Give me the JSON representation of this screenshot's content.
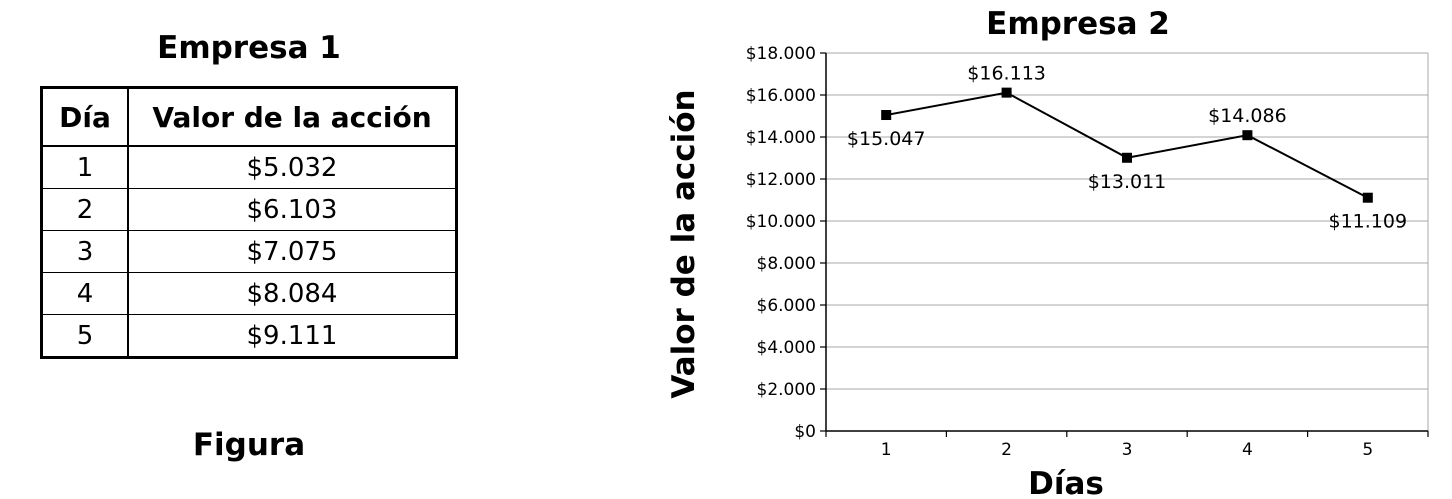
{
  "table": {
    "title": "Empresa 1",
    "headers": [
      "Día",
      "Valor de la acción"
    ],
    "rows": [
      [
        "1",
        "$5.032"
      ],
      [
        "2",
        "$6.103"
      ],
      [
        "3",
        "$7.075"
      ],
      [
        "4",
        "$8.084"
      ],
      [
        "5",
        "$9.111"
      ]
    ]
  },
  "caption": "Figura",
  "chart_data": {
    "type": "line",
    "title": "Empresa 2",
    "xlabel": "Días",
    "ylabel": "Valor de la acción",
    "categories": [
      "1",
      "2",
      "3",
      "4",
      "5"
    ],
    "series": [
      {
        "values": [
          15047,
          16113,
          13011,
          14086,
          11109
        ],
        "labels": [
          "$15.047",
          "$16.113",
          "$13.011",
          "$14.086",
          "$11.109"
        ]
      }
    ],
    "ylim": [
      0,
      18000
    ],
    "yticks": [
      0,
      2000,
      4000,
      6000,
      8000,
      10000,
      12000,
      14000,
      16000,
      18000
    ],
    "ytick_labels": [
      "$0",
      "$2.000",
      "$4.000",
      "$6.000",
      "$8.000",
      "$10.000",
      "$12.000",
      "$14.000",
      "$16.000",
      "$18.000"
    ],
    "grid": true,
    "line_color": "#000000",
    "marker": "square"
  }
}
